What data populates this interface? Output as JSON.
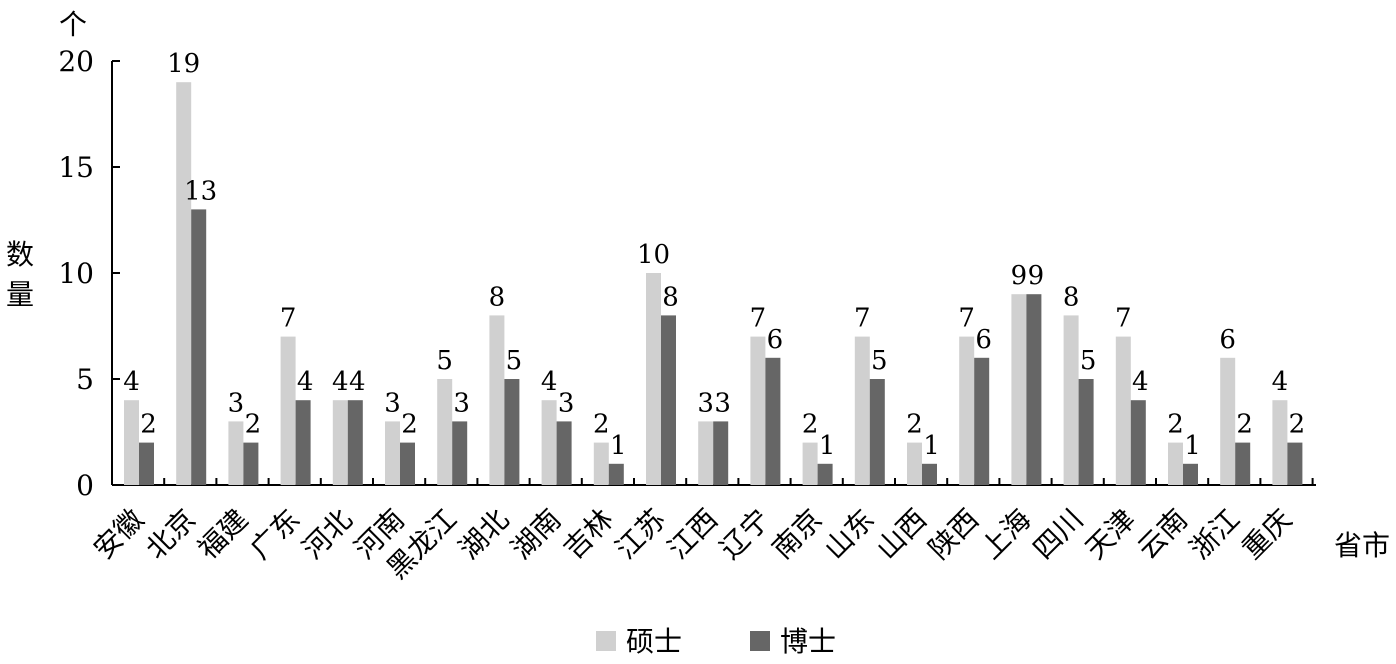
{
  "chart_data": {
    "type": "bar",
    "unit_label": "个",
    "ylabel": "数量",
    "xlabel": "省市",
    "ylim": [
      0,
      20
    ],
    "yticks": [
      0,
      5,
      10,
      15,
      20
    ],
    "categories": [
      "安徽",
      "北京",
      "福建",
      "广东",
      "河北",
      "河南",
      "黑龙江",
      "湖北",
      "湖南",
      "吉林",
      "江苏",
      "江西",
      "辽宁",
      "南京",
      "山东",
      "山西",
      "陕西",
      "上海",
      "四川",
      "天津",
      "云南",
      "浙江",
      "重庆"
    ],
    "series": [
      {
        "name": "硕士",
        "color": "#d0d0d0",
        "values": [
          4,
          19,
          3,
          7,
          4,
          3,
          5,
          8,
          4,
          2,
          10,
          3,
          7,
          2,
          7,
          2,
          7,
          9,
          8,
          7,
          2,
          6,
          4
        ]
      },
      {
        "name": "博士",
        "color": "#666666",
        "values": [
          2,
          13,
          2,
          4,
          4,
          2,
          3,
          5,
          3,
          1,
          8,
          3,
          6,
          1,
          5,
          1,
          6,
          9,
          5,
          4,
          1,
          2,
          2
        ]
      }
    ],
    "legend_position": "bottom-center",
    "grid": false
  }
}
